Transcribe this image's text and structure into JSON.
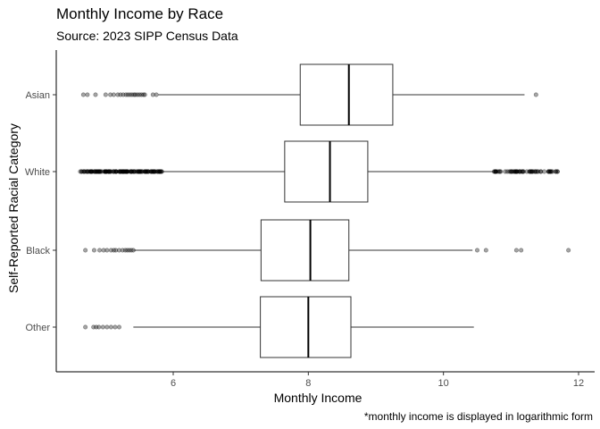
{
  "chart_data": {
    "type": "boxplot",
    "orientation": "horizontal",
    "title": "Monthly Income by Race",
    "subtitle": "Source: 2023 SIPP Census Data",
    "xlabel": "Monthly Income",
    "ylabel": "Self-Reported Racial Category",
    "caption": "*monthly income is displayed in logarithmic form",
    "xlim": [
      4.4,
      12.15
    ],
    "xticks": [
      6,
      8,
      10,
      12
    ],
    "grid": false,
    "categories": [
      "Asian",
      "White",
      "Black",
      "Other"
    ],
    "boxes": [
      {
        "category": "Asian",
        "whisker_low": 5.78,
        "q1": 7.88,
        "median": 8.6,
        "q3": 9.25,
        "whisker_high": 11.2,
        "outliers": [
          4.67,
          4.73,
          4.85,
          5.0,
          5.07,
          5.12,
          5.18,
          5.22,
          5.26,
          5.3,
          5.33,
          5.36,
          5.39,
          5.42,
          5.44,
          5.47,
          5.5,
          5.53,
          5.56,
          5.58,
          5.7,
          5.75,
          11.37
        ]
      },
      {
        "category": "White",
        "whisker_low": 5.84,
        "q1": 7.65,
        "median": 8.32,
        "q3": 8.88,
        "whisker_high": 10.73,
        "outliers_low_range": [
          4.62,
          5.84
        ],
        "outliers_high_range": [
          10.74,
          11.7
        ]
      },
      {
        "category": "Black",
        "whisker_low": 5.42,
        "q1": 7.3,
        "median": 8.03,
        "q3": 8.6,
        "whisker_high": 10.43,
        "outliers": [
          4.7,
          4.83,
          4.91,
          4.97,
          5.02,
          5.08,
          5.12,
          5.15,
          5.2,
          5.25,
          5.29,
          5.32,
          5.35,
          5.38,
          5.41,
          10.5,
          10.63,
          11.08,
          11.15,
          11.85
        ]
      },
      {
        "category": "Other",
        "whisker_low": 5.41,
        "q1": 7.29,
        "median": 8.0,
        "q3": 8.63,
        "whisker_high": 10.45,
        "outliers": [
          4.7,
          4.82,
          4.86,
          4.9,
          4.96,
          5.02,
          5.08,
          5.14,
          5.2
        ]
      }
    ]
  }
}
